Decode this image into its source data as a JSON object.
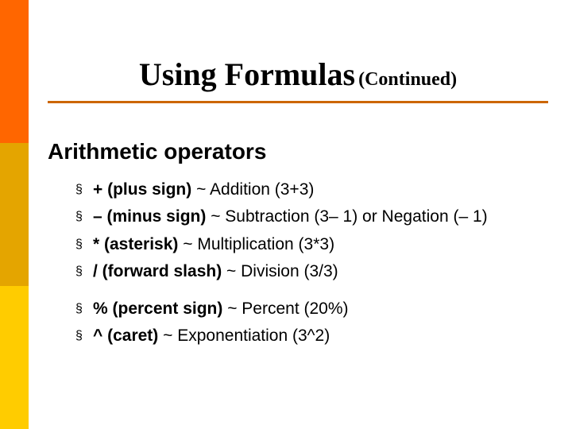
{
  "colors": {
    "bar_top": "#ff6600",
    "bar_mid": "#e4a500",
    "bar_bot": "#ffcc00",
    "rule": "#cc6600",
    "text": "#000000"
  },
  "title": {
    "main": "Using Formulas",
    "cont": "(Continued)"
  },
  "subtitle": "Arithmetic operators",
  "bullet_char": "§",
  "group1": [
    {
      "sym": "+ (plus sign)",
      "desc": " ~ Addition (3+3)"
    },
    {
      "sym": "– (minus sign)",
      "desc": " ~ Subtraction (3– 1) or Negation (– 1)"
    },
    {
      "sym": "* (asterisk)",
      "desc": " ~ Multiplication (3*3)"
    },
    {
      "sym": "/ (forward slash)",
      "desc": " ~ Division (3/3)"
    }
  ],
  "group2": [
    {
      "sym": "% (percent sign)",
      "desc": " ~ Percent (20%)"
    },
    {
      "sym": "^ (caret)",
      "desc": " ~ Exponentiation (3^2)"
    }
  ]
}
